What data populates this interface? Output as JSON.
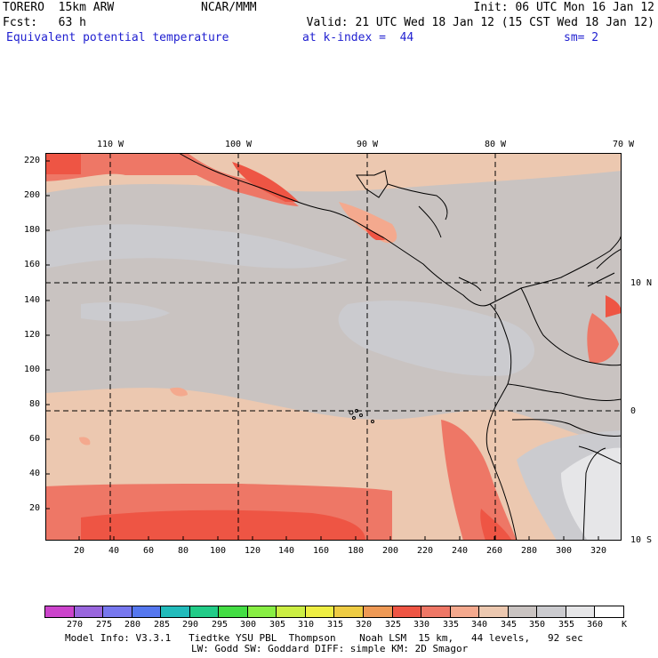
{
  "header": {
    "model": "TORERO  15km ARW",
    "center": "NCAR/MMM",
    "init": "Init: 06 UTC Mon 16 Jan 12",
    "fcst": "Fcst:   63 h",
    "valid": "Valid: 21 UTC Wed 18 Jan 12 (15 CST Wed 18 Jan 12)",
    "field": "Equivalent potential temperature",
    "level": "at k-index =  44",
    "smooth": "sm= 2"
  },
  "longitude_labels": [
    "110 W",
    "100 W",
    "90 W",
    "80 W",
    "70 W"
  ],
  "latitude_labels": [
    "10 N",
    "0",
    "10 S"
  ],
  "x_ticks": [
    "20",
    "40",
    "60",
    "80",
    "100",
    "120",
    "140",
    "160",
    "180",
    "200",
    "220",
    "240",
    "260",
    "280",
    "300",
    "320"
  ],
  "y_ticks": [
    "220",
    "200",
    "180",
    "160",
    "140",
    "120",
    "100",
    "80",
    "60",
    "40",
    "20"
  ],
  "colorbar": {
    "labels": [
      "270",
      "275",
      "280",
      "285",
      "290",
      "295",
      "300",
      "305",
      "310",
      "315",
      "320",
      "325",
      "330",
      "335",
      "340",
      "345",
      "350",
      "355",
      "360"
    ],
    "unit": "K",
    "colors": [
      "#cc44cc",
      "#9966dd",
      "#7777ee",
      "#5577ee",
      "#22bbbb",
      "#22cc88",
      "#44dd44",
      "#88ee44",
      "#ccee44",
      "#eeee44",
      "#eecc44",
      "#ee9955",
      "#ee5544",
      "#ee7766",
      "#f4a98e",
      "#ecc8b0",
      "#c9c3c1",
      "#cbcbcf",
      "#e6e6e8",
      "#ffffff"
    ]
  },
  "footer": {
    "line1": "Model Info: V3.3.1   Tiedtke YSU PBL  Thompson    Noah LSM  15 km,   44 levels,   92 sec",
    "line2": "LW: Godd SW: Goddard DIFF: simple KM: 2D Smagor"
  }
}
